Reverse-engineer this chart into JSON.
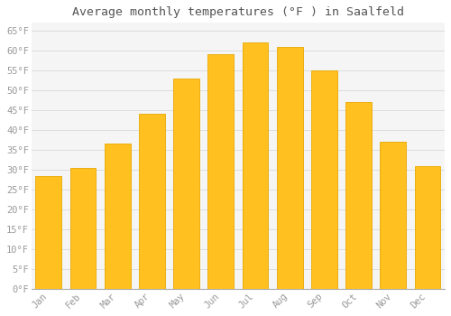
{
  "months": [
    "Jan",
    "Feb",
    "Mar",
    "Apr",
    "May",
    "Jun",
    "Jul",
    "Aug",
    "Sep",
    "Oct",
    "Nov",
    "Dec"
  ],
  "values": [
    28.5,
    30.5,
    36.5,
    44.0,
    53.0,
    59.0,
    62.0,
    61.0,
    55.0,
    47.0,
    37.0,
    31.0
  ],
  "bar_color": "#FFC020",
  "bar_edge_color": "#E8A800",
  "background_color": "#FFFFFF",
  "plot_bg_color": "#F5F5F5",
  "grid_color": "#DDDDDD",
  "title": "Average monthly temperatures (°F ) in Saalfeld",
  "title_fontsize": 9.5,
  "title_color": "#555555",
  "tick_label_color": "#999999",
  "ylabel_ticks": [
    0,
    5,
    10,
    15,
    20,
    25,
    30,
    35,
    40,
    45,
    50,
    55,
    60,
    65
  ],
  "ytick_labels": [
    "0°F",
    "5°F",
    "10°F",
    "15°F",
    "20°F",
    "25°F",
    "30°F",
    "35°F",
    "40°F",
    "45°F",
    "50°F",
    "55°F",
    "60°F",
    "65°F"
  ],
  "ylim": [
    0,
    67
  ],
  "font_family": "monospace",
  "tick_fontsize": 7.5,
  "bar_width": 0.75
}
